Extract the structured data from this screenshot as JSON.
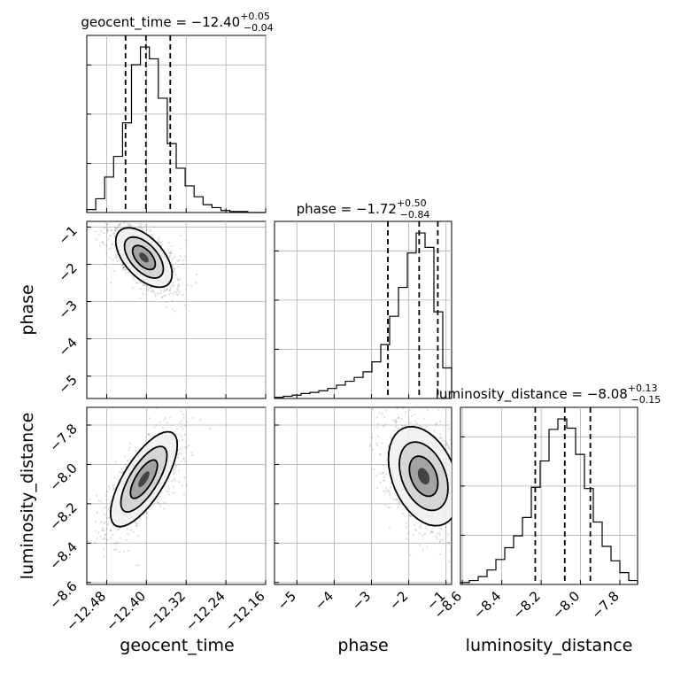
{
  "chart_data": {
    "type": "corner",
    "params": [
      "geocent_time",
      "phase",
      "luminosity_distance"
    ],
    "axis_labels": {
      "geocent_time": "geocent_time",
      "phase": "phase",
      "luminosity_distance": "luminosity_distance"
    },
    "ranges": {
      "geocent_time": [
        -12.52,
        -12.16
      ],
      "phase": [
        -5.6,
        -0.85
      ],
      "luminosity_distance": [
        -8.61,
        -7.71
      ]
    },
    "ticks": {
      "geocent_time": {
        "values": [
          -12.48,
          -12.4,
          -12.32,
          -12.24,
          -12.16
        ],
        "labels": [
          "−12.48",
          "−12.40",
          "−12.32",
          "−12.24",
          "−12.16"
        ]
      },
      "phase": {
        "values": [
          -5,
          -4,
          -3,
          -2,
          -1
        ],
        "labels": [
          "−5",
          "−4",
          "−3",
          "−2",
          "−1"
        ]
      },
      "luminosity_distance": {
        "values": [
          -8.6,
          -8.4,
          -8.2,
          -8.0,
          -7.8
        ],
        "labels": [
          "−8.6",
          "−8.4",
          "−8.2",
          "−8.0",
          "−7.8"
        ]
      }
    },
    "summaries": {
      "geocent_time": {
        "name": "geocent_time",
        "median": "−12.40",
        "plus": "+0.05",
        "minus": "−0.04",
        "quantiles": [
          -12.442,
          -12.401,
          -12.352
        ]
      },
      "phase": {
        "name": "phase",
        "median": "−1.72",
        "plus": "+0.50",
        "minus": "−0.84",
        "quantiles": [
          -2.56,
          -1.72,
          -1.22
        ]
      },
      "luminosity_distance": {
        "name": "luminosity_distance",
        "median": "−8.08",
        "plus": "+0.13",
        "minus": "−0.15",
        "quantiles": [
          -8.23,
          -8.08,
          -7.95
        ]
      }
    },
    "histograms": {
      "geocent_time": {
        "edges": [
          -12.52,
          -12.502,
          -12.484,
          -12.466,
          -12.448,
          -12.43,
          -12.412,
          -12.394,
          -12.376,
          -12.358,
          -12.34,
          -12.322,
          -12.304,
          -12.286,
          -12.268,
          -12.25,
          -12.232,
          -12.214,
          -12.196,
          -12.178,
          -12.16
        ],
        "counts": [
          3,
          14,
          36,
          57,
          91,
          150,
          168,
          156,
          116,
          70,
          45,
          27,
          16,
          8,
          5,
          2,
          1,
          1,
          0,
          0
        ]
      },
      "phase": {
        "edges": [
          -5.6,
          -5.3625,
          -5.125,
          -4.8875,
          -4.65,
          -4.4125,
          -4.175,
          -3.9375,
          -3.7,
          -3.4625,
          -3.225,
          -2.9875,
          -2.75,
          -2.5125,
          -2.275,
          -2.0375,
          -1.8,
          -1.5625,
          -1.325,
          -1.0875,
          -0.85
        ],
        "counts": [
          2,
          4,
          6,
          9,
          11,
          14,
          18,
          24,
          31,
          38,
          48,
          66,
          97,
          148,
          200,
          262,
          298,
          272,
          156,
          55
        ]
      },
      "luminosity_distance": {
        "edges": [
          -8.61,
          -8.565,
          -8.52,
          -8.475,
          -8.43,
          -8.385,
          -8.34,
          -8.295,
          -8.25,
          -8.205,
          -8.16,
          -8.115,
          -8.07,
          -8.025,
          -7.98,
          -7.935,
          -7.89,
          -7.845,
          -7.8,
          -7.755,
          -7.71
        ],
        "counts": [
          3,
          6,
          12,
          22,
          38,
          56,
          74,
          102,
          148,
          188,
          236,
          252,
          238,
          198,
          146,
          95,
          58,
          36,
          18,
          6
        ]
      }
    },
    "pairs": [
      {
        "x": "geocent_time",
        "y": "phase",
        "mean": [
          -12.405,
          -1.82
        ],
        "sd": [
          0.027,
          0.38
        ],
        "rho": -0.55
      },
      {
        "x": "geocent_time",
        "y": "luminosity_distance",
        "mean": [
          -12.405,
          -8.075
        ],
        "sd": [
          0.032,
          0.115
        ],
        "rho": 0.72
      },
      {
        "x": "phase",
        "y": "luminosity_distance",
        "mean": [
          -1.6,
          -8.06
        ],
        "sd": [
          0.45,
          0.12
        ],
        "rho": -0.35
      }
    ]
  }
}
